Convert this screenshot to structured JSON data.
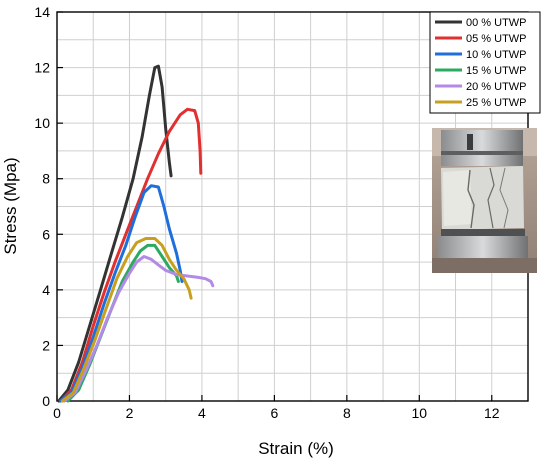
{
  "chart_data": {
    "type": "line",
    "xlabel": "Strain (%)",
    "ylabel": "Stress (Mpa)",
    "xlim": [
      0,
      13
    ],
    "ylim": [
      0,
      14
    ],
    "xticks": [
      0,
      2,
      4,
      6,
      8,
      10,
      12
    ],
    "yticks": [
      0,
      2,
      4,
      6,
      8,
      10,
      12,
      14
    ],
    "grid": true,
    "legend_position": "top-right",
    "inset_image": "photo of cracked specimen between compression platens",
    "series": [
      {
        "name": "00 % UTWP",
        "color": "#333333",
        "points": [
          [
            0.05,
            0
          ],
          [
            0.3,
            0.4
          ],
          [
            0.6,
            1.4
          ],
          [
            0.9,
            2.7
          ],
          [
            1.2,
            4.0
          ],
          [
            1.5,
            5.3
          ],
          [
            1.8,
            6.6
          ],
          [
            2.1,
            8.0
          ],
          [
            2.35,
            9.5
          ],
          [
            2.55,
            11.0
          ],
          [
            2.7,
            12.0
          ],
          [
            2.8,
            12.05
          ],
          [
            2.9,
            11.3
          ],
          [
            3.0,
            9.8
          ],
          [
            3.1,
            8.6
          ],
          [
            3.15,
            8.1
          ]
        ]
      },
      {
        "name": "05 % UTWP",
        "color": "#e03030",
        "points": [
          [
            0.1,
            0
          ],
          [
            0.4,
            0.4
          ],
          [
            0.7,
            1.4
          ],
          [
            1.0,
            2.7
          ],
          [
            1.3,
            3.9
          ],
          [
            1.6,
            5.0
          ],
          [
            1.9,
            6.0
          ],
          [
            2.2,
            7.0
          ],
          [
            2.5,
            8.0
          ],
          [
            2.8,
            8.9
          ],
          [
            3.1,
            9.7
          ],
          [
            3.4,
            10.3
          ],
          [
            3.6,
            10.5
          ],
          [
            3.8,
            10.45
          ],
          [
            3.9,
            10.0
          ],
          [
            3.95,
            9.0
          ],
          [
            3.97,
            8.2
          ]
        ]
      },
      {
        "name": "10 % UTWP",
        "color": "#1e6fdc",
        "points": [
          [
            0.1,
            0
          ],
          [
            0.4,
            0.3
          ],
          [
            0.7,
            1.2
          ],
          [
            1.0,
            2.3
          ],
          [
            1.3,
            3.5
          ],
          [
            1.6,
            4.6
          ],
          [
            1.9,
            5.6
          ],
          [
            2.15,
            6.6
          ],
          [
            2.4,
            7.5
          ],
          [
            2.6,
            7.75
          ],
          [
            2.8,
            7.7
          ],
          [
            2.95,
            7.0
          ],
          [
            3.1,
            6.2
          ],
          [
            3.3,
            5.3
          ],
          [
            3.4,
            4.7
          ],
          [
            3.45,
            4.3
          ]
        ]
      },
      {
        "name": "15 % UTWP",
        "color": "#2eaa60",
        "points": [
          [
            0.3,
            0
          ],
          [
            0.6,
            0.4
          ],
          [
            0.9,
            1.3
          ],
          [
            1.2,
            2.3
          ],
          [
            1.5,
            3.3
          ],
          [
            1.8,
            4.3
          ],
          [
            2.1,
            5.0
          ],
          [
            2.3,
            5.4
          ],
          [
            2.5,
            5.6
          ],
          [
            2.7,
            5.6
          ],
          [
            2.9,
            5.2
          ],
          [
            3.1,
            4.8
          ],
          [
            3.3,
            4.5
          ],
          [
            3.35,
            4.3
          ]
        ]
      },
      {
        "name": "20 % UTWP",
        "color": "#b38ae6",
        "points": [
          [
            0.2,
            0
          ],
          [
            0.5,
            0.3
          ],
          [
            0.8,
            1.1
          ],
          [
            1.1,
            2.0
          ],
          [
            1.4,
            3.0
          ],
          [
            1.7,
            3.9
          ],
          [
            2.0,
            4.6
          ],
          [
            2.2,
            5.0
          ],
          [
            2.4,
            5.2
          ],
          [
            2.6,
            5.1
          ],
          [
            2.8,
            4.9
          ],
          [
            3.0,
            4.7
          ],
          [
            3.3,
            4.55
          ],
          [
            3.6,
            4.5
          ],
          [
            3.9,
            4.45
          ],
          [
            4.1,
            4.4
          ],
          [
            4.25,
            4.3
          ],
          [
            4.3,
            4.15
          ]
        ]
      },
      {
        "name": "25 % UTWP",
        "color": "#c8a020",
        "points": [
          [
            0.15,
            0
          ],
          [
            0.45,
            0.3
          ],
          [
            0.75,
            1.2
          ],
          [
            1.05,
            2.2
          ],
          [
            1.35,
            3.3
          ],
          [
            1.65,
            4.4
          ],
          [
            1.95,
            5.2
          ],
          [
            2.2,
            5.7
          ],
          [
            2.45,
            5.85
          ],
          [
            2.7,
            5.85
          ],
          [
            2.9,
            5.6
          ],
          [
            3.1,
            5.1
          ],
          [
            3.3,
            4.7
          ],
          [
            3.5,
            4.4
          ],
          [
            3.65,
            4.0
          ],
          [
            3.7,
            3.7
          ]
        ]
      }
    ]
  }
}
